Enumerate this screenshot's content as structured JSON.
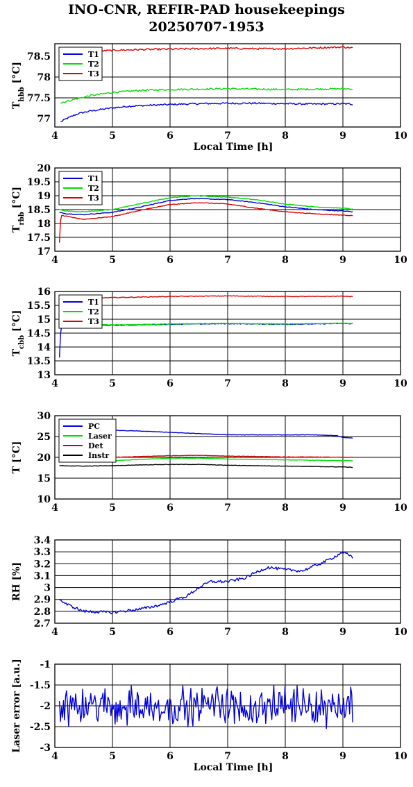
{
  "title": {
    "line1": "INO-CNR, REFIR-PAD housekeepings",
    "line2": "20250707-1953"
  },
  "colors": {
    "blue": "#0000dd",
    "green": "#00dd00",
    "red": "#dd0000",
    "black": "#000000"
  },
  "chart_data": [
    {
      "type": "line",
      "ylabel_main": "T",
      "ylabel_sub": "hbb",
      "ylabel_unit": " [°C]",
      "xlabel": "Local Time [h]",
      "xlim": [
        4,
        10
      ],
      "ylim": [
        76.8,
        78.8
      ],
      "yticks": [
        77,
        77.5,
        78,
        78.5
      ],
      "ytick_labels": [
        "77",
        "77.5",
        "78",
        "78.5"
      ],
      "xticks": [
        4,
        5,
        6,
        7,
        8,
        9,
        10
      ],
      "legend": "top-left",
      "series": [
        {
          "name": "T1",
          "color": "#0000dd",
          "noise": 0.02,
          "x": [
            4.1,
            4.2,
            4.4,
            4.6,
            4.8,
            5.0,
            5.3,
            5.6,
            6.0,
            6.5,
            7.0,
            7.5,
            8.0,
            8.5,
            9.0,
            9.17
          ],
          "y": [
            76.92,
            77.0,
            77.12,
            77.18,
            77.22,
            77.26,
            77.3,
            77.32,
            77.34,
            77.36,
            77.37,
            77.37,
            77.36,
            77.35,
            77.36,
            77.35
          ]
        },
        {
          "name": "T2",
          "color": "#00dd00",
          "noise": 0.02,
          "x": [
            4.1,
            4.3,
            4.6,
            5.0,
            5.5,
            6.0,
            6.5,
            7.0,
            7.5,
            8.0,
            8.5,
            9.0,
            9.17
          ],
          "y": [
            77.38,
            77.45,
            77.55,
            77.63,
            77.68,
            77.7,
            77.71,
            77.72,
            77.71,
            77.7,
            77.71,
            77.72,
            77.71
          ]
        },
        {
          "name": "T3",
          "color": "#dd0000",
          "noise": 0.02,
          "x": [
            4.5,
            4.7,
            5.0,
            5.5,
            6.0,
            6.5,
            7.0,
            7.5,
            8.0,
            8.5,
            9.0,
            9.17
          ],
          "y": [
            78.6,
            78.62,
            78.64,
            78.66,
            78.67,
            78.68,
            78.69,
            78.68,
            78.68,
            78.7,
            78.72,
            78.7
          ]
        }
      ]
    },
    {
      "type": "line",
      "ylabel_main": "T",
      "ylabel_sub": "rbb",
      "ylabel_unit": " [°C]",
      "xlabel": "",
      "xlim": [
        4,
        10
      ],
      "ylim": [
        17,
        20
      ],
      "yticks": [
        17,
        17.5,
        18,
        18.5,
        19,
        19.5,
        20
      ],
      "ytick_labels": [
        "17",
        "17.5",
        "18",
        "18.5",
        "19",
        "19.5",
        "20"
      ],
      "xticks": [
        4,
        5,
        6,
        7,
        8,
        9,
        10
      ],
      "legend": "top-left",
      "series": [
        {
          "name": "T1",
          "color": "#0000dd",
          "noise": 0.012,
          "x": [
            4.08,
            4.2,
            4.5,
            5.0,
            5.5,
            6.0,
            6.4,
            7.0,
            7.5,
            8.0,
            8.5,
            9.0,
            9.17
          ],
          "y": [
            18.4,
            18.35,
            18.32,
            18.4,
            18.6,
            18.83,
            18.9,
            18.86,
            18.75,
            18.6,
            18.5,
            18.45,
            18.42
          ]
        },
        {
          "name": "T2",
          "color": "#00dd00",
          "noise": 0.012,
          "x": [
            4.08,
            4.2,
            4.5,
            5.0,
            5.5,
            6.0,
            6.4,
            7.0,
            7.5,
            8.0,
            8.5,
            9.0,
            9.17
          ],
          "y": [
            18.5,
            18.45,
            18.42,
            18.5,
            18.72,
            18.93,
            19.0,
            18.95,
            18.85,
            18.7,
            18.6,
            18.55,
            18.52
          ]
        },
        {
          "name": "T3",
          "color": "#dd0000",
          "noise": 0.012,
          "x": [
            4.08,
            4.09,
            4.11,
            4.14,
            4.3,
            4.5,
            5.0,
            5.5,
            6.0,
            6.5,
            7.0,
            7.5,
            8.0,
            8.5,
            9.0,
            9.17
          ],
          "y": [
            17.3,
            17.9,
            18.3,
            18.28,
            18.22,
            18.15,
            18.25,
            18.48,
            18.68,
            18.75,
            18.7,
            18.55,
            18.42,
            18.35,
            18.3,
            18.28
          ]
        }
      ]
    },
    {
      "type": "line",
      "ylabel_main": "T",
      "ylabel_sub": "cbb",
      "ylabel_unit": " [°C]",
      "xlabel": "",
      "xlim": [
        4,
        10
      ],
      "ylim": [
        13,
        16
      ],
      "yticks": [
        13,
        13.5,
        14,
        14.5,
        15,
        15.5,
        16
      ],
      "ytick_labels": [
        "13",
        "13.5",
        "14",
        "14.5",
        "15",
        "15.5",
        "16"
      ],
      "xticks": [
        4,
        5,
        6,
        7,
        8,
        9,
        10
      ],
      "legend": "top-left",
      "series": [
        {
          "name": "T1",
          "color": "#0000dd",
          "noise": 0.012,
          "x": [
            4.08,
            4.1,
            4.12,
            4.2,
            4.5,
            5.0,
            5.5,
            6.0,
            6.5,
            7.0,
            7.5,
            8.0,
            8.5,
            9.0,
            9.17
          ],
          "y": [
            13.62,
            14.5,
            14.8,
            14.8,
            14.8,
            14.78,
            14.8,
            14.82,
            14.83,
            14.84,
            14.83,
            14.82,
            14.83,
            14.85,
            14.84
          ]
        },
        {
          "name": "T2",
          "color": "#00dd00",
          "noise": 0.012,
          "x": [
            4.12,
            4.2,
            4.5,
            5.0,
            5.5,
            6.0,
            6.5,
            7.0,
            7.5,
            8.0,
            8.5,
            9.0,
            9.17
          ],
          "y": [
            14.82,
            14.82,
            14.81,
            14.8,
            14.81,
            14.83,
            14.84,
            14.85,
            14.84,
            14.83,
            14.84,
            14.86,
            14.85
          ]
        },
        {
          "name": "T3",
          "color": "#dd0000",
          "noise": 0.012,
          "x": [
            4.5,
            5.0,
            5.5,
            6.0,
            6.5,
            7.0,
            7.5,
            8.0,
            8.5,
            9.0,
            9.17
          ],
          "y": [
            15.76,
            15.78,
            15.8,
            15.82,
            15.83,
            15.84,
            15.83,
            15.82,
            15.82,
            15.83,
            15.82
          ]
        }
      ]
    },
    {
      "type": "line",
      "ylabel_main": "T [°C]",
      "ylabel_sub": "",
      "ylabel_unit": "",
      "xlabel": "",
      "xlim": [
        4,
        10
      ],
      "ylim": [
        10,
        30
      ],
      "yticks": [
        10,
        15,
        20,
        25,
        30
      ],
      "ytick_labels": [
        "10",
        "15",
        "20",
        "25",
        "30"
      ],
      "xticks": [
        4,
        5,
        6,
        7,
        8,
        9,
        10
      ],
      "legend": "top-left",
      "series": [
        {
          "name": "PC",
          "color": "#0000dd",
          "noise": 0.05,
          "x": [
            5.0,
            5.5,
            6.0,
            6.5,
            7.0,
            7.5,
            8.0,
            8.5,
            8.9,
            9.0,
            9.17
          ],
          "y": [
            26.5,
            26.3,
            26.0,
            25.7,
            25.4,
            25.4,
            25.4,
            25.4,
            25.2,
            24.8,
            24.6
          ]
        },
        {
          "name": "Laser",
          "color": "#00dd00",
          "noise": 0.05,
          "x": [
            5.0,
            5.5,
            6.0,
            6.5,
            7.0,
            7.5,
            8.0,
            8.5,
            9.0,
            9.17
          ],
          "y": [
            19.2,
            19.5,
            19.8,
            19.8,
            19.6,
            19.5,
            19.4,
            19.3,
            19.2,
            19.2
          ]
        },
        {
          "name": "Det",
          "color": "#dd0000",
          "noise": 0.05,
          "x": [
            5.0,
            5.5,
            6.0,
            6.5,
            7.0,
            7.5,
            8.0,
            8.5,
            9.0,
            9.17
          ],
          "y": [
            20.0,
            20.2,
            20.4,
            20.5,
            20.3,
            20.2,
            20.1,
            20.1,
            20.0,
            20.0
          ]
        },
        {
          "name": "Instr",
          "color": "#000000",
          "noise": 0.05,
          "x": [
            4.08,
            4.5,
            5.0,
            5.5,
            6.0,
            6.5,
            7.0,
            7.5,
            8.0,
            8.5,
            9.0,
            9.17
          ],
          "y": [
            18.0,
            17.9,
            18.0,
            18.2,
            18.3,
            18.3,
            18.1,
            18.0,
            17.9,
            17.8,
            17.7,
            17.6
          ]
        }
      ]
    },
    {
      "type": "line",
      "ylabel_main": "RH [%]",
      "ylabel_sub": "",
      "ylabel_unit": "",
      "xlabel": "",
      "xlim": [
        4,
        10
      ],
      "ylim": [
        2.7,
        3.4
      ],
      "yticks": [
        2.7,
        2.8,
        2.9,
        3.0,
        3.1,
        3.2,
        3.3,
        3.4
      ],
      "ytick_labels": [
        "2.7",
        "2.8",
        "2.9",
        "3",
        "3.1",
        "3.2",
        "3.3",
        "3.4"
      ],
      "xticks": [
        4,
        5,
        6,
        7,
        8,
        9,
        10
      ],
      "legend": "none",
      "series": [
        {
          "name": "",
          "color": "#0000dd",
          "noise": 0.012,
          "x": [
            4.08,
            4.2,
            4.5,
            5.0,
            5.5,
            5.8,
            6.0,
            6.3,
            6.5,
            6.7,
            7.0,
            7.3,
            7.5,
            7.7,
            8.0,
            8.3,
            8.5,
            8.7,
            8.9,
            9.0,
            9.17
          ],
          "y": [
            2.9,
            2.86,
            2.8,
            2.79,
            2.82,
            2.85,
            2.88,
            2.93,
            3.0,
            3.05,
            3.05,
            3.08,
            3.13,
            3.17,
            3.15,
            3.14,
            3.18,
            3.22,
            3.27,
            3.3,
            3.25
          ]
        }
      ]
    },
    {
      "type": "line",
      "ylabel_main": "Laser error [a.u.]",
      "ylabel_sub": "",
      "ylabel_unit": "",
      "xlabel": "Local Time [h]",
      "xlim": [
        4,
        10
      ],
      "ylim": [
        -3,
        -1
      ],
      "yticks": [
        -3,
        -2.5,
        -2,
        -1.5,
        -1
      ],
      "ytick_labels": [
        "-3",
        "-2.5",
        "-2",
        "-1.5",
        "-1"
      ],
      "xticks": [
        4,
        5,
        6,
        7,
        8,
        9,
        10
      ],
      "legend": "none",
      "series": [
        {
          "name": "",
          "color": "#0000dd",
          "noise": 0.28,
          "x": [
            4.08,
            9.17
          ],
          "y": [
            -2.0,
            -2.0
          ]
        }
      ]
    }
  ],
  "xtick_labels": [
    "4",
    "5",
    "6",
    "7",
    "8",
    "9",
    "10"
  ]
}
